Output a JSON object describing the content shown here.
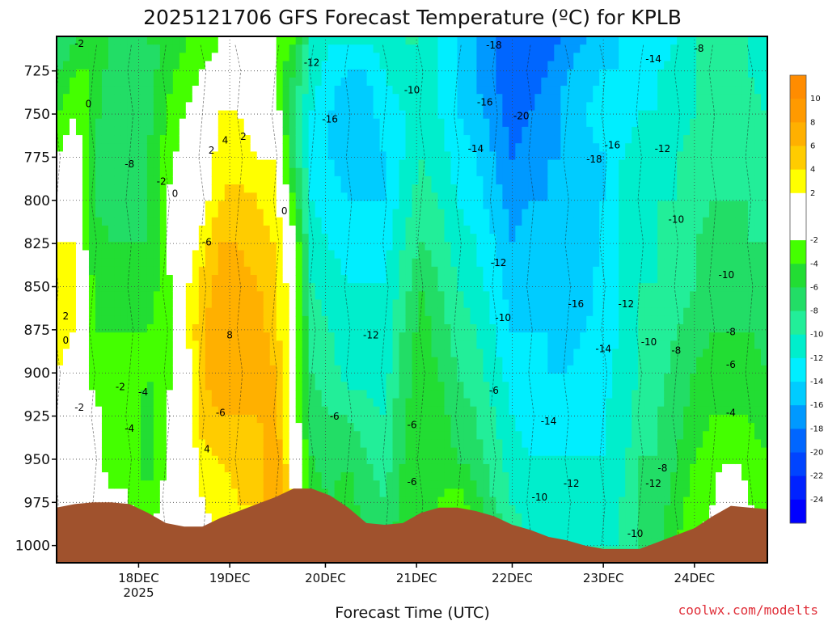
{
  "chart_data": {
    "type": "heatmap",
    "title": "2025121706 GFS Forecast Temperature (ºC) for KPLB",
    "xlabel": "Forecast Time (UTC)",
    "ylabel": "",
    "credit": "coolwx.com/modelts",
    "y_axis": {
      "units": "hPa",
      "range": [
        705,
        1010
      ],
      "inverted": true,
      "ticks": [
        "725",
        "750",
        "775",
        "800",
        "825",
        "850",
        "875",
        "900",
        "925",
        "950",
        "975",
        "1000"
      ]
    },
    "x_axis": {
      "range_hours_from_17dec00z": [
        6,
        162
      ],
      "ticks": [
        {
          "label": "18DEC",
          "hour": 24,
          "sublabel": "2025"
        },
        {
          "label": "19DEC",
          "hour": 44
        },
        {
          "label": "20DEC",
          "hour": 65
        },
        {
          "label": "21DEC",
          "hour": 85
        },
        {
          "label": "22DEC",
          "hour": 106
        },
        {
          "label": "23DEC",
          "hour": 126
        },
        {
          "label": "24DEC",
          "hour": 146
        }
      ]
    },
    "colorbar": {
      "labels": [
        "10",
        "8",
        "6",
        "4",
        "2",
        "-2",
        "-4",
        "-6",
        "-8",
        "-10",
        "-12",
        "-14",
        "-16",
        "-18",
        "-20",
        "-22",
        "-24"
      ],
      "bins": [
        {
          "lo": 10,
          "hi": 12,
          "color": "#ff8c00"
        },
        {
          "lo": 8,
          "hi": 10,
          "color": "#ff9a00"
        },
        {
          "lo": 6,
          "hi": 8,
          "color": "#ffb000"
        },
        {
          "lo": 4,
          "hi": 6,
          "color": "#ffcc00"
        },
        {
          "lo": 2,
          "hi": 4,
          "color": "#ffff00"
        },
        {
          "lo": 0,
          "hi": 2,
          "color": "#ffffff"
        },
        {
          "lo": -2,
          "hi": 0,
          "color": "#ffffff"
        },
        {
          "lo": -4,
          "hi": -2,
          "color": "#44ff00"
        },
        {
          "lo": -6,
          "hi": -4,
          "color": "#22dd33"
        },
        {
          "lo": -8,
          "hi": -6,
          "color": "#22dd66"
        },
        {
          "lo": -10,
          "hi": -8,
          "color": "#22ee99"
        },
        {
          "lo": -12,
          "hi": -10,
          "color": "#00eecc"
        },
        {
          "lo": -14,
          "hi": -12,
          "color": "#00eeff"
        },
        {
          "lo": -16,
          "hi": -14,
          "color": "#00ccff"
        },
        {
          "lo": -18,
          "hi": -16,
          "color": "#0099ff"
        },
        {
          "lo": -20,
          "hi": -18,
          "color": "#0066ff"
        },
        {
          "lo": -22,
          "hi": -20,
          "color": "#0044ff"
        },
        {
          "lo": -24,
          "hi": -22,
          "color": "#0022ff"
        },
        {
          "lo": -26,
          "hi": -24,
          "color": "#0000ff"
        }
      ]
    },
    "terrain_color": "#a0522d",
    "temperature_columns": [
      {
        "hour": 6,
        "t": [
          -8,
          -6,
          -4,
          -2,
          0,
          2,
          3,
          3,
          2,
          1,
          -1,
          0,
          1
        ]
      },
      {
        "hour": 10,
        "t": [
          -6,
          -4,
          -2,
          0,
          1,
          2,
          3,
          2,
          1,
          0,
          -1,
          -1,
          0
        ]
      },
      {
        "hour": 14,
        "t": [
          -4,
          -4,
          -5,
          -6,
          -6,
          -5,
          -4,
          -4,
          -3,
          -1,
          0,
          0,
          2
        ]
      },
      {
        "hour": 18,
        "t": [
          -6,
          -7,
          -8,
          -8,
          -7,
          -6,
          -5,
          -4,
          -3,
          -3,
          -4,
          -1,
          1
        ]
      },
      {
        "hour": 22,
        "t": [
          -7,
          -8,
          -8,
          -8,
          -7,
          -6,
          -5,
          -4,
          -3,
          -2,
          -2,
          -2,
          0
        ]
      },
      {
        "hour": 26,
        "t": [
          -6,
          -7,
          -7,
          -6,
          -6,
          -6,
          -5,
          -4,
          -4,
          -5,
          -5,
          -4,
          -2
        ]
      },
      {
        "hour": 30,
        "t": [
          -6,
          -5,
          -4,
          -3,
          -2,
          -2,
          -3,
          -3,
          -3,
          -2,
          -2,
          -1,
          0
        ]
      },
      {
        "hour": 34,
        "t": [
          -4,
          -3,
          -2,
          -1,
          0,
          0,
          1,
          1,
          0,
          0,
          -1,
          -1,
          0
        ]
      },
      {
        "hour": 38,
        "t": [
          -3,
          -2,
          -1,
          0,
          1,
          3,
          5,
          6,
          6,
          5,
          3,
          2,
          1
        ]
      },
      {
        "hour": 42,
        "t": [
          -2,
          0,
          2,
          3,
          4,
          6,
          7,
          7,
          7,
          6,
          4,
          3,
          2
        ]
      },
      {
        "hour": 46,
        "t": [
          -2,
          0,
          2,
          3,
          5,
          6,
          7,
          8,
          8,
          6,
          5,
          4,
          3
        ]
      },
      {
        "hour": 50,
        "t": [
          -2,
          -1,
          1,
          2,
          4,
          5,
          6,
          7,
          7,
          6,
          5,
          4,
          3
        ]
      },
      {
        "hour": 54,
        "t": [
          -2,
          -2,
          0,
          2,
          3,
          4,
          5,
          5,
          6,
          7,
          8,
          8,
          6
        ]
      },
      {
        "hour": 58,
        "t": [
          -4,
          -6,
          -8,
          -7,
          -4,
          -1,
          0,
          0,
          0,
          0,
          1,
          2,
          3
        ]
      },
      {
        "hour": 62,
        "t": [
          -10,
          -11,
          -12,
          -12,
          -12,
          -11,
          -10,
          -9,
          -8,
          -7,
          -6,
          -5,
          -4
        ]
      },
      {
        "hour": 66,
        "t": [
          -12,
          -13,
          -14,
          -14,
          -13,
          -12,
          -11,
          -10,
          -9,
          -8,
          -7,
          -6,
          -5
        ]
      },
      {
        "hour": 70,
        "t": [
          -12,
          -14,
          -16,
          -15,
          -14,
          -13,
          -12,
          -12,
          -11,
          -8,
          -6,
          -5,
          -5
        ]
      },
      {
        "hour": 74,
        "t": [
          -12,
          -14,
          -15,
          -15,
          -14,
          -13,
          -12,
          -12,
          -11,
          -9,
          -8,
          -7,
          -6
        ]
      },
      {
        "hour": 78,
        "t": [
          -11,
          -12,
          -13,
          -14,
          -14,
          -13,
          -12,
          -12,
          -11,
          -10,
          -9,
          -8,
          -7
        ]
      },
      {
        "hour": 82,
        "t": [
          -10,
          -11,
          -12,
          -12,
          -11,
          -10,
          -9,
          -8,
          -7,
          -6,
          -6,
          -5,
          -5
        ]
      },
      {
        "hour": 86,
        "t": [
          -10,
          -10,
          -11,
          -10,
          -9,
          -8,
          -6,
          -5,
          -5,
          -5,
          -6,
          -6,
          -6
        ]
      },
      {
        "hour": 90,
        "t": [
          -12,
          -12,
          -12,
          -11,
          -10,
          -9,
          -8,
          -7,
          -6,
          -5,
          -5,
          -4,
          -3
        ]
      },
      {
        "hour": 94,
        "t": [
          -14,
          -14,
          -14,
          -13,
          -12,
          -11,
          -10,
          -9,
          -8,
          -7,
          -6,
          -3,
          -1
        ]
      },
      {
        "hour": 98,
        "t": [
          -16,
          -16,
          -15,
          -14,
          -13,
          -12,
          -11,
          -10,
          -9,
          -8,
          -7,
          -5,
          -3
        ]
      },
      {
        "hour": 102,
        "t": [
          -18,
          -18,
          -17,
          -16,
          -15,
          -14,
          -13,
          -12,
          -11,
          -10,
          -9,
          -8,
          -6
        ]
      },
      {
        "hour": 106,
        "t": [
          -20,
          -20,
          -19,
          -18,
          -17,
          -16,
          -15,
          -14,
          -13,
          -12,
          -11,
          -10,
          -9
        ]
      },
      {
        "hour": 110,
        "t": [
          -20,
          -19,
          -18,
          -17,
          -16,
          -15,
          -15,
          -14,
          -14,
          -13,
          -12,
          -11,
          -10
        ]
      },
      {
        "hour": 114,
        "t": [
          -19,
          -18,
          -17,
          -16,
          -16,
          -15,
          -15,
          -14,
          -14,
          -13,
          -12,
          -11,
          -10
        ]
      },
      {
        "hour": 118,
        "t": [
          -17,
          -16,
          -15,
          -16,
          -16,
          -16,
          -16,
          -15,
          -14,
          -13,
          -12,
          -11,
          -10
        ]
      },
      {
        "hour": 122,
        "t": [
          -16,
          -15,
          -14,
          -15,
          -15,
          -16,
          -15,
          -14,
          -13,
          -13,
          -12,
          -11,
          -10
        ]
      },
      {
        "hour": 126,
        "t": [
          -15,
          -14,
          -13,
          -14,
          -14,
          -13,
          -13,
          -13,
          -13,
          -12,
          -12,
          -11,
          -10
        ]
      },
      {
        "hour": 130,
        "t": [
          -14,
          -14,
          -13,
          -12,
          -12,
          -12,
          -12,
          -12,
          -11,
          -11,
          -11,
          -10,
          -10
        ]
      },
      {
        "hour": 134,
        "t": [
          -14,
          -13,
          -12,
          -11,
          -11,
          -11,
          -10,
          -10,
          -10,
          -9,
          -8,
          -8,
          -8
        ]
      },
      {
        "hour": 138,
        "t": [
          -13,
          -12,
          -12,
          -11,
          -10,
          -10,
          -10,
          -9,
          -9,
          -8,
          -8,
          -7,
          -7
        ]
      },
      {
        "hour": 142,
        "t": [
          -12,
          -11,
          -11,
          -10,
          -10,
          -9,
          -9,
          -8,
          -7,
          -7,
          -6,
          -5,
          -4
        ]
      },
      {
        "hour": 146,
        "t": [
          -10,
          -10,
          -10,
          -9,
          -9,
          -8,
          -8,
          -7,
          -6,
          -5,
          -4,
          -3,
          -2
        ]
      },
      {
        "hour": 150,
        "t": [
          -8,
          -8,
          -8,
          -8,
          -8,
          -7,
          -7,
          -6,
          -5,
          -4,
          -3,
          -2,
          -1
        ]
      },
      {
        "hour": 154,
        "t": [
          -9,
          -9,
          -9,
          -9,
          -8,
          -7,
          -7,
          -6,
          -5,
          -4,
          -2,
          1,
          2
        ]
      },
      {
        "hour": 158,
        "t": [
          -10,
          -10,
          -9,
          -9,
          -8,
          -8,
          -7,
          -6,
          -5,
          -4,
          -3,
          -2,
          -1
        ]
      },
      {
        "hour": 162,
        "t": [
          -11,
          -11,
          -10,
          -10,
          -9,
          -8,
          -8,
          -7,
          -6,
          -5,
          -4,
          -3,
          -2
        ]
      }
    ],
    "pressure_rows": [
      710,
      725,
      750,
      775,
      800,
      825,
      850,
      875,
      900,
      925,
      950,
      975,
      1000
    ],
    "surface_pressure": [
      {
        "hour": 6,
        "p": 978
      },
      {
        "hour": 10,
        "p": 976
      },
      {
        "hour": 14,
        "p": 975
      },
      {
        "hour": 18,
        "p": 975
      },
      {
        "hour": 22,
        "p": 976
      },
      {
        "hour": 26,
        "p": 981
      },
      {
        "hour": 30,
        "p": 987
      },
      {
        "hour": 34,
        "p": 989
      },
      {
        "hour": 38,
        "p": 989
      },
      {
        "hour": 42,
        "p": 984
      },
      {
        "hour": 46,
        "p": 980
      },
      {
        "hour": 50,
        "p": 976
      },
      {
        "hour": 54,
        "p": 972
      },
      {
        "hour": 58,
        "p": 967
      },
      {
        "hour": 62,
        "p": 967
      },
      {
        "hour": 66,
        "p": 971
      },
      {
        "hour": 70,
        "p": 978
      },
      {
        "hour": 74,
        "p": 987
      },
      {
        "hour": 78,
        "p": 988
      },
      {
        "hour": 82,
        "p": 987
      },
      {
        "hour": 86,
        "p": 981
      },
      {
        "hour": 90,
        "p": 978
      },
      {
        "hour": 94,
        "p": 978
      },
      {
        "hour": 98,
        "p": 980
      },
      {
        "hour": 102,
        "p": 983
      },
      {
        "hour": 106,
        "p": 988
      },
      {
        "hour": 110,
        "p": 991
      },
      {
        "hour": 114,
        "p": 995
      },
      {
        "hour": 118,
        "p": 997
      },
      {
        "hour": 122,
        "p": 1000
      },
      {
        "hour": 126,
        "p": 1002
      },
      {
        "hour": 130,
        "p": 1002
      },
      {
        "hour": 134,
        "p": 1002
      },
      {
        "hour": 138,
        "p": 998
      },
      {
        "hour": 142,
        "p": 994
      },
      {
        "hour": 146,
        "p": 990
      },
      {
        "hour": 150,
        "p": 983
      },
      {
        "hour": 154,
        "p": 977
      },
      {
        "hour": 158,
        "p": 978
      },
      {
        "hour": 162,
        "p": 979
      }
    ],
    "contour_labels": [
      {
        "text": "-2",
        "hour": 11,
        "p": 711
      },
      {
        "text": "0",
        "hour": 13,
        "p": 746
      },
      {
        "text": "-8",
        "hour": 22,
        "p": 781
      },
      {
        "text": "-2",
        "hour": 29,
        "p": 791
      },
      {
        "text": "0",
        "hour": 32,
        "p": 798
      },
      {
        "text": "2",
        "hour": 40,
        "p": 773
      },
      {
        "text": "4",
        "hour": 43,
        "p": 767
      },
      {
        "text": "2",
        "hour": 47,
        "p": 765
      },
      {
        "text": "-6",
        "hour": 39,
        "p": 826
      },
      {
        "text": "8",
        "hour": 44,
        "p": 880
      },
      {
        "text": "-6",
        "hour": 42,
        "p": 925
      },
      {
        "text": "4",
        "hour": 39,
        "p": 946
      },
      {
        "text": "0",
        "hour": 56,
        "p": 808
      },
      {
        "text": "2",
        "hour": 8,
        "p": 869
      },
      {
        "text": "0",
        "hour": 8,
        "p": 883
      },
      {
        "text": "-2",
        "hour": 20,
        "p": 910
      },
      {
        "text": "-4",
        "hour": 25,
        "p": 913
      },
      {
        "text": "-2",
        "hour": 11,
        "p": 922
      },
      {
        "text": "-4",
        "hour": 22,
        "p": 934
      },
      {
        "text": "-12",
        "hour": 62,
        "p": 722
      },
      {
        "text": "-16",
        "hour": 66,
        "p": 755
      },
      {
        "text": "-12",
        "hour": 75,
        "p": 880
      },
      {
        "text": "-6",
        "hour": 67,
        "p": 927
      },
      {
        "text": "-10",
        "hour": 84,
        "p": 738
      },
      {
        "text": "-6",
        "hour": 84,
        "p": 932
      },
      {
        "text": "-6",
        "hour": 84,
        "p": 965
      },
      {
        "text": "-16",
        "hour": 100,
        "p": 745
      },
      {
        "text": "-14",
        "hour": 98,
        "p": 772
      },
      {
        "text": "-18",
        "hour": 102,
        "p": 712
      },
      {
        "text": "-20",
        "hour": 108,
        "p": 753
      },
      {
        "text": "-12",
        "hour": 103,
        "p": 838
      },
      {
        "text": "-10",
        "hour": 104,
        "p": 870
      },
      {
        "text": "-6",
        "hour": 102,
        "p": 912
      },
      {
        "text": "-14",
        "hour": 114,
        "p": 930
      },
      {
        "text": "-10",
        "hour": 112,
        "p": 974
      },
      {
        "text": "-12",
        "hour": 119,
        "p": 966
      },
      {
        "text": "-16",
        "hour": 120,
        "p": 862
      },
      {
        "text": "-18",
        "hour": 124,
        "p": 778
      },
      {
        "text": "-16",
        "hour": 128,
        "p": 770
      },
      {
        "text": "-14",
        "hour": 126,
        "p": 888
      },
      {
        "text": "-12",
        "hour": 131,
        "p": 862
      },
      {
        "text": "-10",
        "hour": 136,
        "p": 884
      },
      {
        "text": "-12",
        "hour": 137,
        "p": 966
      },
      {
        "text": "-8",
        "hour": 139,
        "p": 957
      },
      {
        "text": "-10",
        "hour": 133,
        "p": 995
      },
      {
        "text": "-14",
        "hour": 137,
        "p": 720
      },
      {
        "text": "-12",
        "hour": 139,
        "p": 772
      },
      {
        "text": "-10",
        "hour": 142,
        "p": 813
      },
      {
        "text": "-8",
        "hour": 142,
        "p": 889
      },
      {
        "text": "-8",
        "hour": 147,
        "p": 714
      },
      {
        "text": "-10",
        "hour": 153,
        "p": 845
      },
      {
        "text": "-8",
        "hour": 154,
        "p": 878
      },
      {
        "text": "-6",
        "hour": 154,
        "p": 897
      },
      {
        "text": "-4",
        "hour": 154,
        "p": 925
      }
    ]
  }
}
